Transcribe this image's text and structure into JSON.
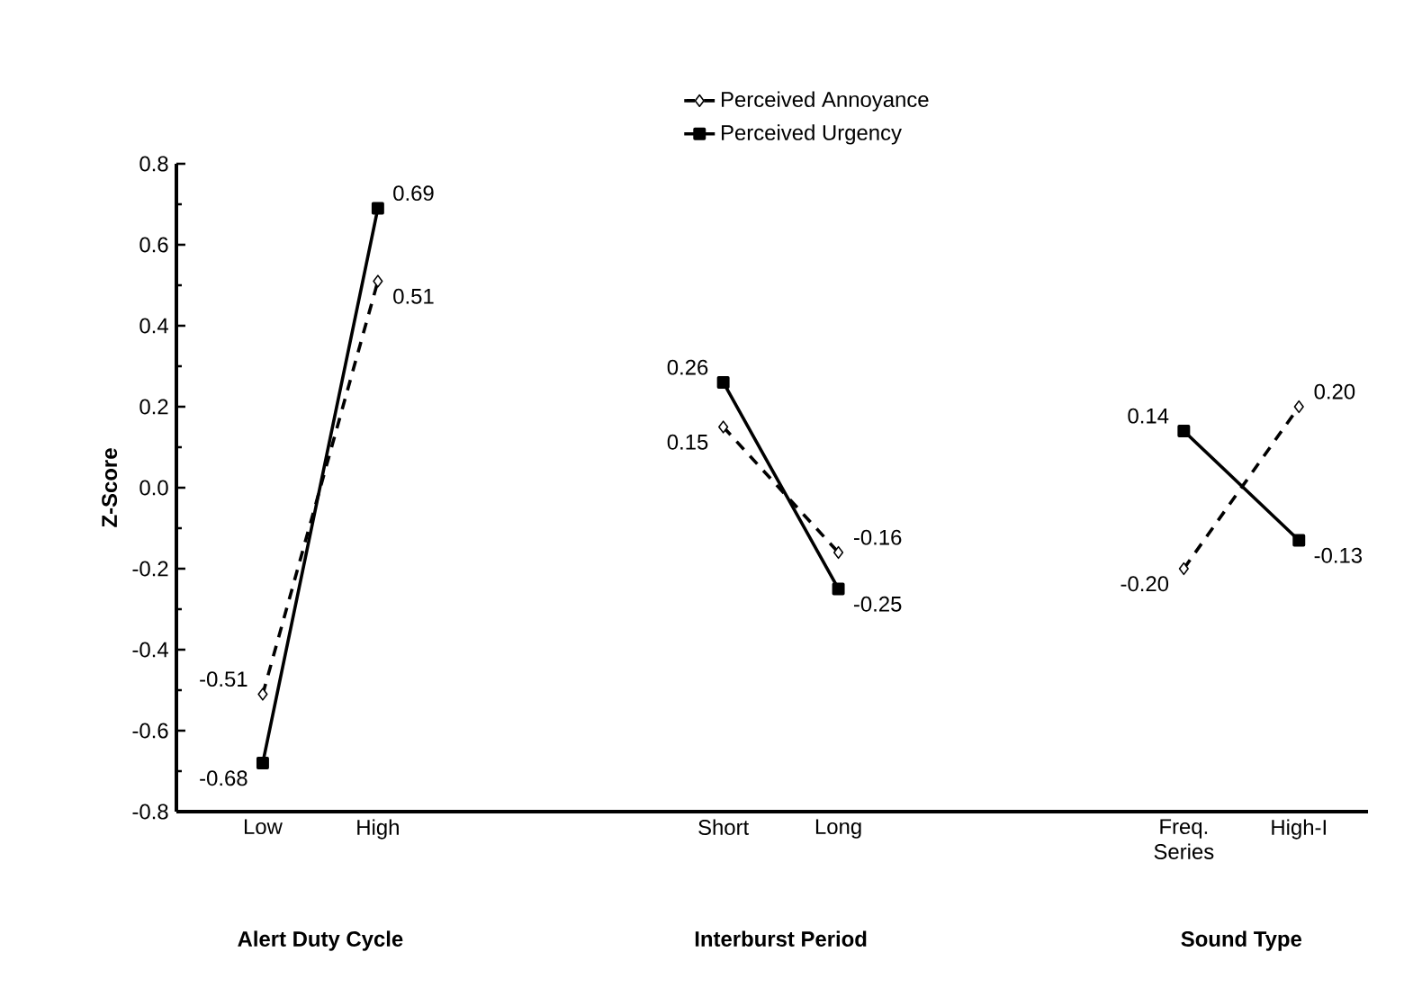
{
  "chart_data": {
    "type": "line",
    "ylabel": "Z-Score",
    "categories": [
      "Low",
      "High",
      null,
      null,
      "Short",
      "Long",
      null,
      null,
      "Freq. Series",
      "High-I"
    ],
    "series": [
      {
        "name": "Perceived Annoyance",
        "color": "#000000",
        "marker": "diamond",
        "line_style": "dashed",
        "values": [
          -0.51,
          0.51,
          null,
          null,
          0.15,
          -0.16,
          null,
          null,
          -0.2,
          0.2
        ],
        "value_labels": [
          "-0.51",
          "0.51",
          null,
          null,
          "0.15",
          "-0.16",
          null,
          null,
          "-0.20",
          "0.20"
        ]
      },
      {
        "name": "Perceived Urgency",
        "color": "#000000",
        "marker": "square",
        "line_style": "solid",
        "values": [
          -0.68,
          0.69,
          null,
          null,
          0.26,
          -0.25,
          null,
          null,
          0.14,
          -0.13
        ],
        "value_labels": [
          "-0.68",
          "0.69",
          null,
          null,
          "0.26",
          "-0.25",
          null,
          null,
          "0.14",
          "-0.13"
        ]
      }
    ],
    "ylim": [
      -0.8,
      0.8
    ],
    "yticks": [
      -0.8,
      -0.6,
      -0.4,
      -0.2,
      {
        "value": 0,
        "label": "0.0"
      },
      0.2,
      0.4,
      0.6,
      0.8
    ],
    "legend": "top",
    "annotations": [
      "Alert Duty Cycle",
      "Interburst Period",
      "Sound Type"
    ]
  }
}
